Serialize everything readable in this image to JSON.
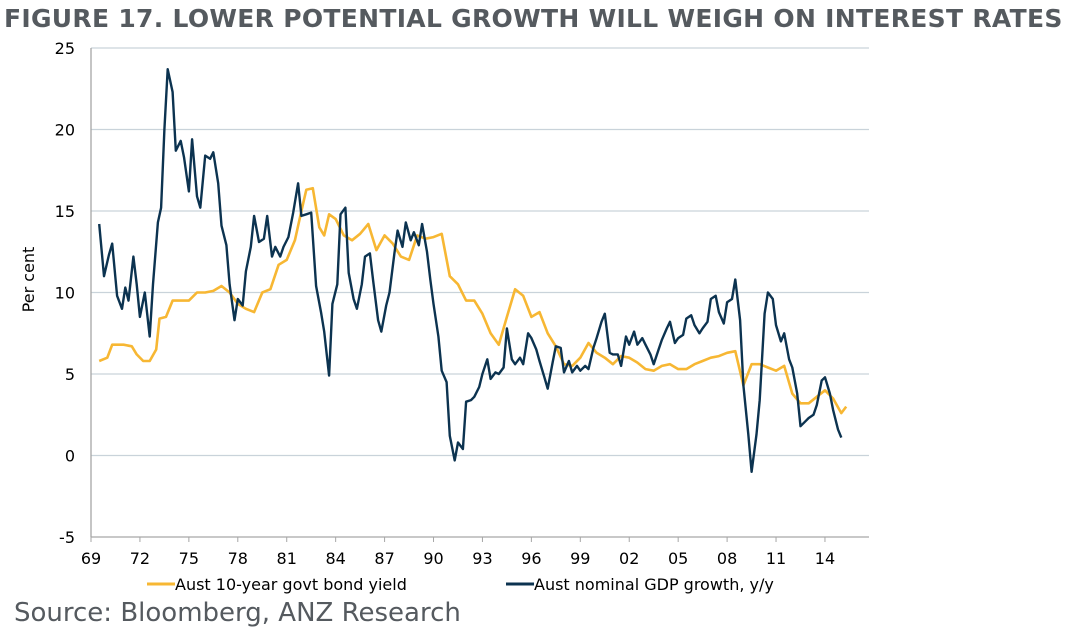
{
  "page": {
    "title": "FIGURE 17. LOWER POTENTIAL GROWTH WILL WEIGH ON INTEREST RATES",
    "source": "Source: Bloomberg, ANZ Research"
  },
  "chart_data": {
    "type": "line",
    "title": "FIGURE 17. LOWER POTENTIAL GROWTH WILL WEIGH ON INTEREST RATES",
    "xlabel": "",
    "ylabel": "Per cent",
    "xlim": [
      1969,
      2016.7
    ],
    "ylim": [
      -5,
      25
    ],
    "y_ticks": [
      -5,
      0,
      5,
      10,
      15,
      20,
      25
    ],
    "x_ticks": [
      1969,
      1972,
      1975,
      1978,
      1981,
      1984,
      1987,
      1990,
      1993,
      1996,
      1999,
      2002,
      2005,
      2008,
      2011,
      2014
    ],
    "x_tick_labels": [
      "69",
      "72",
      "75",
      "78",
      "81",
      "84",
      "87",
      "90",
      "93",
      "96",
      "99",
      "02",
      "05",
      "08",
      "11",
      "14"
    ],
    "grid": "horizontal",
    "legend_position": "bottom",
    "colors": {
      "bond": "#f7b733",
      "gdp": "#0c3350",
      "grid": "#c9d3da",
      "axis": "#a6a6a6"
    },
    "series": [
      {
        "name": "Aust 10-year govt bond yield",
        "x": [
          1969.5,
          1970.0,
          1970.3,
          1970.6,
          1971.0,
          1971.5,
          1971.8,
          1972.2,
          1972.6,
          1973.0,
          1973.2,
          1973.6,
          1974.0,
          1974.5,
          1975.0,
          1975.5,
          1976.0,
          1976.5,
          1977.0,
          1977.5,
          1978.0,
          1978.5,
          1979.0,
          1979.5,
          1980.0,
          1980.5,
          1981.0,
          1981.5,
          1981.9,
          1982.2,
          1982.6,
          1983.0,
          1983.3,
          1983.6,
          1984.0,
          1984.5,
          1985.0,
          1985.5,
          1986.0,
          1986.5,
          1987.0,
          1987.5,
          1988.0,
          1988.5,
          1989.0,
          1989.5,
          1990.0,
          1990.5,
          1991.0,
          1991.5,
          1992.0,
          1992.5,
          1993.0,
          1993.5,
          1994.0,
          1994.5,
          1995.0,
          1995.5,
          1996.0,
          1996.5,
          1997.0,
          1997.5,
          1998.0,
          1998.5,
          1999.0,
          1999.5,
          2000.0,
          2000.5,
          2001.0,
          2001.5,
          2002.0,
          2002.5,
          2003.0,
          2003.5,
          2004.0,
          2004.5,
          2005.0,
          2005.5,
          2006.0,
          2006.5,
          2007.0,
          2007.5,
          2008.0,
          2008.5,
          2009.0,
          2009.5,
          2010.0,
          2010.5,
          2011.0,
          2011.5,
          2012.0,
          2012.5,
          2013.0,
          2013.5,
          2014.0,
          2014.5,
          2015.0,
          2015.3
        ],
        "values": [
          5.8,
          6.0,
          6.8,
          6.8,
          6.8,
          6.7,
          6.2,
          5.8,
          5.8,
          6.5,
          8.4,
          8.5,
          9.5,
          9.5,
          9.5,
          10.0,
          10.0,
          10.1,
          10.4,
          10.0,
          9.3,
          9.0,
          8.8,
          10.0,
          10.2,
          11.7,
          12.0,
          13.2,
          15.0,
          16.3,
          16.4,
          14.0,
          13.5,
          14.8,
          14.5,
          13.5,
          13.2,
          13.6,
          14.2,
          12.6,
          13.5,
          13.0,
          12.2,
          12.0,
          13.5,
          13.3,
          13.4,
          13.6,
          11.0,
          10.5,
          9.5,
          9.5,
          8.7,
          7.5,
          6.8,
          8.5,
          10.2,
          9.8,
          8.5,
          8.8,
          7.5,
          6.7,
          5.6,
          5.5,
          6.0,
          6.9,
          6.3,
          6.0,
          5.6,
          6.1,
          6.0,
          5.7,
          5.3,
          5.2,
          5.5,
          5.6,
          5.3,
          5.3,
          5.6,
          5.8,
          6.0,
          6.1,
          6.3,
          6.4,
          4.3,
          5.6,
          5.6,
          5.4,
          5.2,
          5.5,
          3.8,
          3.2,
          3.2,
          3.6,
          4.0,
          3.5,
          2.6,
          3.0
        ]
      },
      {
        "name": "Aust nominal GDP growth, y/y",
        "x": [
          1969.5,
          1969.8,
          1970.1,
          1970.3,
          1970.6,
          1970.9,
          1971.1,
          1971.3,
          1971.6,
          1971.8,
          1972.0,
          1972.3,
          1972.6,
          1972.8,
          1973.1,
          1973.3,
          1973.5,
          1973.7,
          1974.0,
          1974.2,
          1974.5,
          1974.7,
          1975.0,
          1975.2,
          1975.5,
          1975.7,
          1976.0,
          1976.3,
          1976.5,
          1976.8,
          1977.0,
          1977.3,
          1977.5,
          1977.8,
          1978.0,
          1978.3,
          1978.5,
          1978.8,
          1979.0,
          1979.3,
          1979.6,
          1979.8,
          1980.1,
          1980.3,
          1980.6,
          1980.8,
          1981.1,
          1981.4,
          1981.7,
          1981.9,
          1982.2,
          1982.5,
          1982.8,
          1983.1,
          1983.3,
          1983.6,
          1983.8,
          1984.1,
          1984.3,
          1984.6,
          1984.8,
          1985.1,
          1985.3,
          1985.6,
          1985.8,
          1986.1,
          1986.3,
          1986.6,
          1986.8,
          1987.1,
          1987.3,
          1987.6,
          1987.8,
          1988.1,
          1988.3,
          1988.6,
          1988.8,
          1989.1,
          1989.3,
          1989.6,
          1989.8,
          1990.0,
          1990.3,
          1990.5,
          1990.8,
          1991.0,
          1991.3,
          1991.5,
          1991.8,
          1992.0,
          1992.3,
          1992.5,
          1992.8,
          1993.0,
          1993.3,
          1993.5,
          1993.8,
          1994.0,
          1994.3,
          1994.5,
          1994.8,
          1995.0,
          1995.3,
          1995.5,
          1995.8,
          1996.0,
          1996.3,
          1996.5,
          1996.8,
          1997.0,
          1997.3,
          1997.5,
          1997.8,
          1998.0,
          1998.3,
          1998.5,
          1998.8,
          1999.0,
          1999.3,
          1999.5,
          1999.8,
          2000.0,
          2000.3,
          2000.5,
          2000.8,
          2001.0,
          2001.3,
          2001.5,
          2001.8,
          2002.0,
          2002.3,
          2002.5,
          2002.8,
          2003.0,
          2003.3,
          2003.5,
          2003.8,
          2004.0,
          2004.3,
          2004.5,
          2004.8,
          2005.0,
          2005.3,
          2005.5,
          2005.8,
          2006.0,
          2006.3,
          2006.5,
          2006.8,
          2007.0,
          2007.3,
          2007.5,
          2007.8,
          2008.0,
          2008.3,
          2008.5,
          2008.8,
          2009.0,
          2009.3,
          2009.5,
          2009.8,
          2010.0,
          2010.3,
          2010.5,
          2010.8,
          2011.0,
          2011.3,
          2011.5,
          2011.8,
          2012.0,
          2012.3,
          2012.5,
          2012.8,
          2013.0,
          2013.3,
          2013.5,
          2013.8,
          2014.0,
          2014.3,
          2014.5,
          2014.8,
          2015.0
        ],
        "values": [
          14.2,
          11.0,
          12.3,
          13.0,
          9.8,
          9.0,
          10.3,
          9.5,
          12.2,
          10.5,
          8.5,
          10.0,
          7.3,
          10.5,
          14.3,
          15.2,
          20.0,
          23.7,
          22.3,
          18.7,
          19.3,
          18.3,
          16.2,
          19.4,
          15.9,
          15.2,
          18.4,
          18.2,
          18.6,
          16.7,
          14.1,
          12.9,
          10.5,
          8.3,
          9.6,
          9.2,
          11.3,
          12.8,
          14.7,
          13.1,
          13.3,
          14.7,
          12.2,
          12.8,
          12.2,
          12.8,
          13.4,
          14.9,
          16.7,
          14.7,
          14.8,
          14.9,
          10.4,
          8.8,
          7.6,
          4.9,
          9.3,
          10.5,
          14.8,
          15.2,
          11.2,
          9.6,
          9.0,
          10.5,
          12.2,
          12.4,
          10.7,
          8.3,
          7.6,
          9.2,
          10.0,
          12.4,
          13.8,
          12.8,
          14.3,
          13.2,
          13.7,
          12.9,
          14.2,
          12.5,
          10.8,
          9.3,
          7.3,
          5.2,
          4.5,
          1.2,
          -0.3,
          0.8,
          0.4,
          3.3,
          3.4,
          3.6,
          4.2,
          5.0,
          5.9,
          4.7,
          5.1,
          5.0,
          5.4,
          7.8,
          5.9,
          5.6,
          6.0,
          5.6,
          7.5,
          7.2,
          6.5,
          5.8,
          4.8,
          4.1,
          5.7,
          6.7,
          6.6,
          5.1,
          5.8,
          5.1,
          5.5,
          5.2,
          5.5,
          5.3,
          6.6,
          7.2,
          8.2,
          8.7,
          6.3,
          6.2,
          6.2,
          5.5,
          7.3,
          6.8,
          7.6,
          6.8,
          7.2,
          6.8,
          6.2,
          5.6,
          6.5,
          7.1,
          7.8,
          8.2,
          6.9,
          7.2,
          7.4,
          8.4,
          8.6,
          8.0,
          7.5,
          7.8,
          8.2,
          9.6,
          9.8,
          8.8,
          8.1,
          9.4,
          9.6,
          10.8,
          8.3,
          4.3,
          1.3,
          -1.0,
          1.3,
          3.4,
          8.7,
          10.0,
          9.6,
          8.0,
          7.0,
          7.5,
          5.9,
          5.4,
          3.8,
          1.8,
          2.1,
          2.3,
          2.5,
          3.1,
          4.6,
          4.8,
          3.8,
          2.8,
          1.6,
          1.1
        ]
      }
    ]
  }
}
